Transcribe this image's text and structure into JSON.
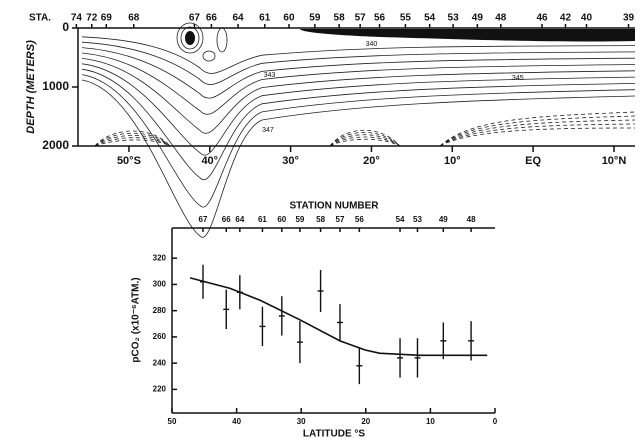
{
  "chart_data": [
    {
      "type": "contour",
      "y_label": "DEPTH (METERS)",
      "station_prefix": "STA.",
      "xlim": [
        -56.3,
        12.6
      ],
      "ylim": [
        2000,
        0
      ],
      "xticks": [
        {
          "value": -50,
          "label": "50°S"
        },
        {
          "value": -40,
          "label": "40°"
        },
        {
          "value": -30,
          "label": "30°"
        },
        {
          "value": -20,
          "label": "20°"
        },
        {
          "value": -10,
          "label": "10°"
        },
        {
          "value": 0,
          "label": "EQ"
        },
        {
          "value": 10,
          "label": "10°N"
        }
      ],
      "yticks": [
        0,
        1000,
        2000
      ],
      "x2ticks": [
        {
          "value": -56.5,
          "label": "74"
        },
        {
          "value": -54.6,
          "label": "72"
        },
        {
          "value": -52.8,
          "label": "69"
        },
        {
          "value": -49.4,
          "label": "68"
        },
        {
          "value": -41.9,
          "label": "67"
        },
        {
          "value": -39.8,
          "label": "66"
        },
        {
          "value": -36.5,
          "label": "64"
        },
        {
          "value": -33.2,
          "label": "61"
        },
        {
          "value": -30.2,
          "label": "60"
        },
        {
          "value": -27,
          "label": "59"
        },
        {
          "value": -24,
          "label": "58"
        },
        {
          "value": -21.4,
          "label": "57"
        },
        {
          "value": -19,
          "label": "56"
        },
        {
          "value": -15.8,
          "label": "55"
        },
        {
          "value": -12.8,
          "label": "54"
        },
        {
          "value": -9.9,
          "label": "53"
        },
        {
          "value": -6.9,
          "label": "49"
        },
        {
          "value": -4,
          "label": "48"
        },
        {
          "value": 1.1,
          "label": "46"
        },
        {
          "value": 4,
          "label": "42"
        },
        {
          "value": 6.6,
          "label": "40"
        },
        {
          "value": 11.8,
          "label": "39"
        }
      ],
      "levels": [
        {
          "level": 340,
          "x": -20,
          "y": 271
        },
        {
          "level": 343,
          "x": -32.6,
          "y": 797
        },
        {
          "level": 345,
          "x": -1.9,
          "y": 847
        },
        {
          "level": 347,
          "x": -32.8,
          "y": 1729
        }
      ]
    },
    {
      "type": "errorbar",
      "title": "STATION NUMBER",
      "x_label": "LATITUDE °S",
      "y_label": "pCO₂ (x10⁻⁶ATM.)",
      "color": "#111111",
      "xlim": [
        50,
        0
      ],
      "ylim": [
        202,
        343
      ],
      "xticks": [
        50,
        40,
        30,
        20,
        10,
        0
      ],
      "yticks": [
        220,
        240,
        260,
        280,
        300,
        320
      ],
      "x2ticks": [
        {
          "value": 45.2,
          "label": "67"
        },
        {
          "value": 41.6,
          "label": "66"
        },
        {
          "value": 39.5,
          "label": "64"
        },
        {
          "value": 36,
          "label": "61"
        },
        {
          "value": 33,
          "label": "60"
        },
        {
          "value": 30.2,
          "label": "59"
        },
        {
          "value": 27,
          "label": "58"
        },
        {
          "value": 24,
          "label": "57"
        },
        {
          "value": 21,
          "label": "56"
        },
        {
          "value": 14.7,
          "label": "54"
        },
        {
          "value": 12,
          "label": "53"
        },
        {
          "value": 8,
          "label": "49"
        },
        {
          "value": 3.7,
          "label": "48"
        }
      ],
      "x": [
        45.2,
        41.6,
        39.5,
        36,
        33,
        30.2,
        27,
        24,
        21,
        14.7,
        12,
        8,
        3.7
      ],
      "values": [
        302,
        281,
        294,
        268,
        276,
        256,
        295,
        271,
        238,
        244,
        244,
        257,
        257
      ],
      "errors": [
        13,
        15,
        13,
        15,
        15,
        16,
        16,
        14,
        14,
        15,
        15,
        14,
        15
      ],
      "fit": {
        "x": [
          47.2,
          41,
          36.4,
          30.2,
          24,
          20.1,
          17.8,
          11.6,
          1.2
        ],
        "values": [
          305,
          297,
          288,
          273,
          257,
          250,
          247.5,
          246,
          246
        ]
      }
    }
  ]
}
